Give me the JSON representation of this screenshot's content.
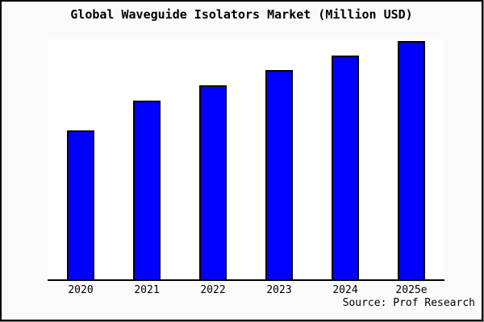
{
  "chart_data": {
    "type": "bar",
    "title": "Global Waveguide Isolators Market (Million USD)",
    "categories": [
      "2020",
      "2021",
      "2022",
      "2023",
      "2024",
      "2025e"
    ],
    "values_relative": [
      62.7,
      75.2,
      81.5,
      87.9,
      94.0,
      100.0
    ],
    "value_scale_note": "No y-axis ticks, gridlines or data labels are shown; values are relative bar heights with the tallest bar (2025e) = 100",
    "xlabel": "",
    "ylabel": "",
    "y_axis_ticks_visible": false,
    "gridlines": false,
    "legend": false,
    "source": "Source: Prof Research",
    "colors": {
      "bar_fill": "#0000ff",
      "bar_outline": "#000000",
      "plot_background": "#ffffff",
      "figure_background": "#fafafa",
      "frame_border": "#000000",
      "text": "#000000"
    }
  }
}
